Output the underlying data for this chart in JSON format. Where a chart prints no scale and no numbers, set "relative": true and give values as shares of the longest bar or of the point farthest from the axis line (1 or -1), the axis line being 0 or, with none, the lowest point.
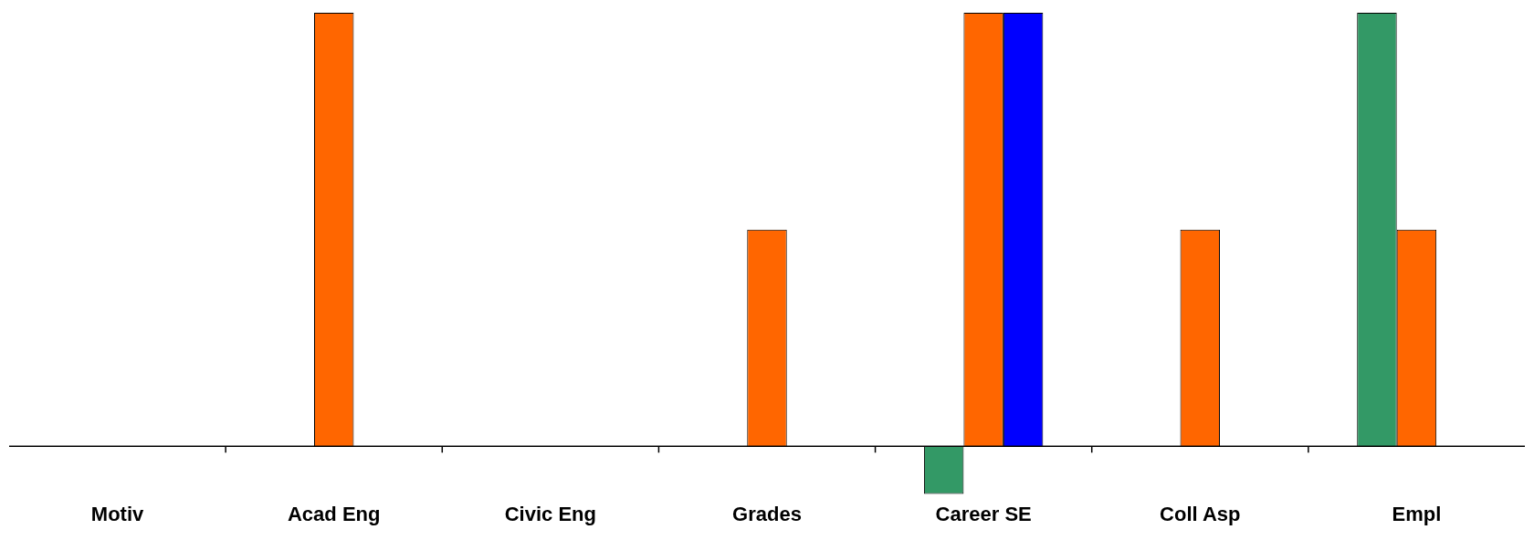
{
  "chart_data": {
    "type": "bar",
    "relative": true,
    "categories": [
      "Motiv",
      "Acad Eng",
      "Civic Eng",
      "Grades",
      "Career SE",
      "Coll Asp",
      "Empl"
    ],
    "series": [
      {
        "color": "#339966",
        "values": [
          null,
          null,
          null,
          null,
          -0.11,
          null,
          1
        ]
      },
      {
        "color": "#ff6600",
        "values": [
          null,
          1,
          null,
          0.5,
          1,
          0.5,
          0.5
        ]
      },
      {
        "color": "#0000ff",
        "values": [
          null,
          null,
          null,
          null,
          1,
          null,
          null
        ]
      }
    ],
    "grid": false,
    "legend": false
  }
}
